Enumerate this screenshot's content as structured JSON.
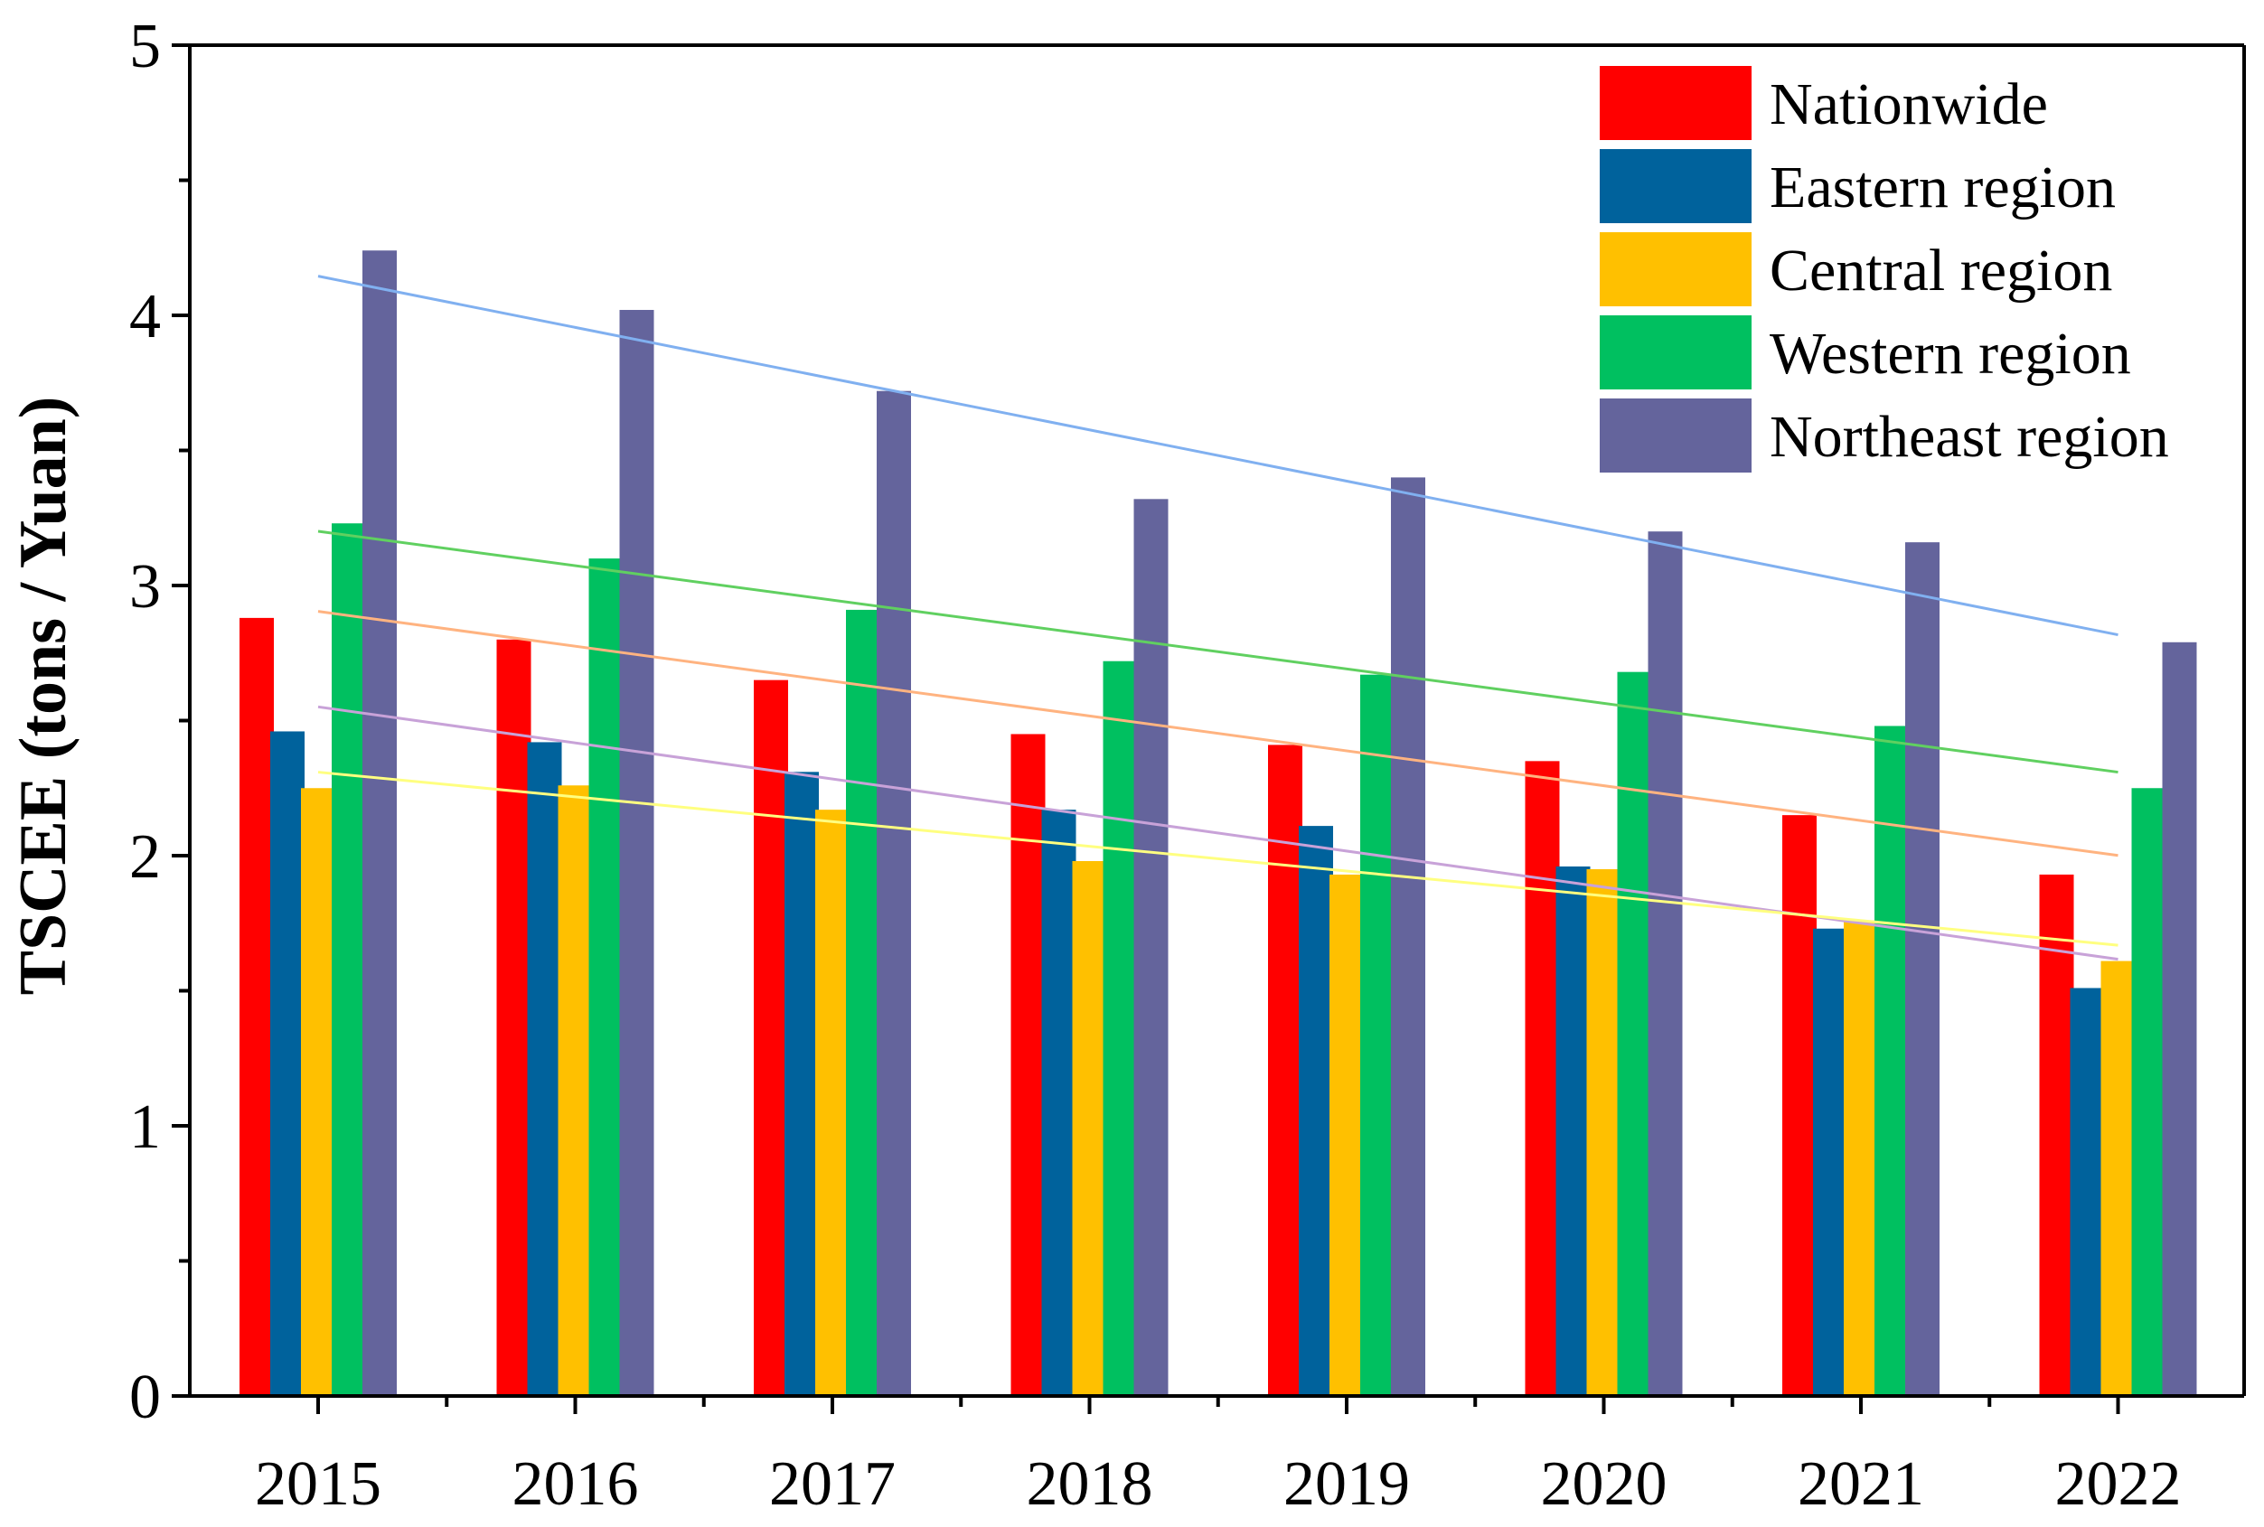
{
  "chart_data": {
    "type": "bar",
    "title": "",
    "xlabel": "",
    "ylabel": "TSCEE (tons / Yuan)",
    "ylim": [
      0,
      5
    ],
    "yticks": [
      "0",
      "1",
      "2",
      "3",
      "4",
      "5"
    ],
    "categories": [
      "2015",
      "2016",
      "2017",
      "2018",
      "2019",
      "2020",
      "2021",
      "2022"
    ],
    "grid": false,
    "legend_position": "top-right",
    "series": [
      {
        "name": "Nationwide",
        "color": "#ff0000",
        "trend_color": "#ffb380",
        "values": [
          2.88,
          2.8,
          2.65,
          2.45,
          2.41,
          2.35,
          2.15,
          1.93
        ]
      },
      {
        "name": "Eastern region",
        "color": "#00629c",
        "trend_color": "#c8a2d8",
        "values": [
          2.46,
          2.42,
          2.31,
          2.17,
          2.11,
          1.96,
          1.73,
          1.51
        ]
      },
      {
        "name": "Central region",
        "color": "#ffc000",
        "trend_color": "#ffff80",
        "values": [
          2.25,
          2.26,
          2.17,
          1.98,
          1.93,
          1.95,
          1.76,
          1.61
        ]
      },
      {
        "name": "Western region",
        "color": "#00c060",
        "trend_color": "#60d060",
        "values": [
          3.23,
          3.1,
          2.91,
          2.72,
          2.67,
          2.68,
          2.48,
          2.25
        ]
      },
      {
        "name": "Northeast region",
        "color": "#64649c",
        "trend_color": "#80b0f0",
        "values": [
          4.24,
          4.02,
          3.72,
          3.32,
          3.4,
          3.2,
          3.16,
          2.79
        ]
      }
    ],
    "trendlines": "linear fit per series"
  }
}
